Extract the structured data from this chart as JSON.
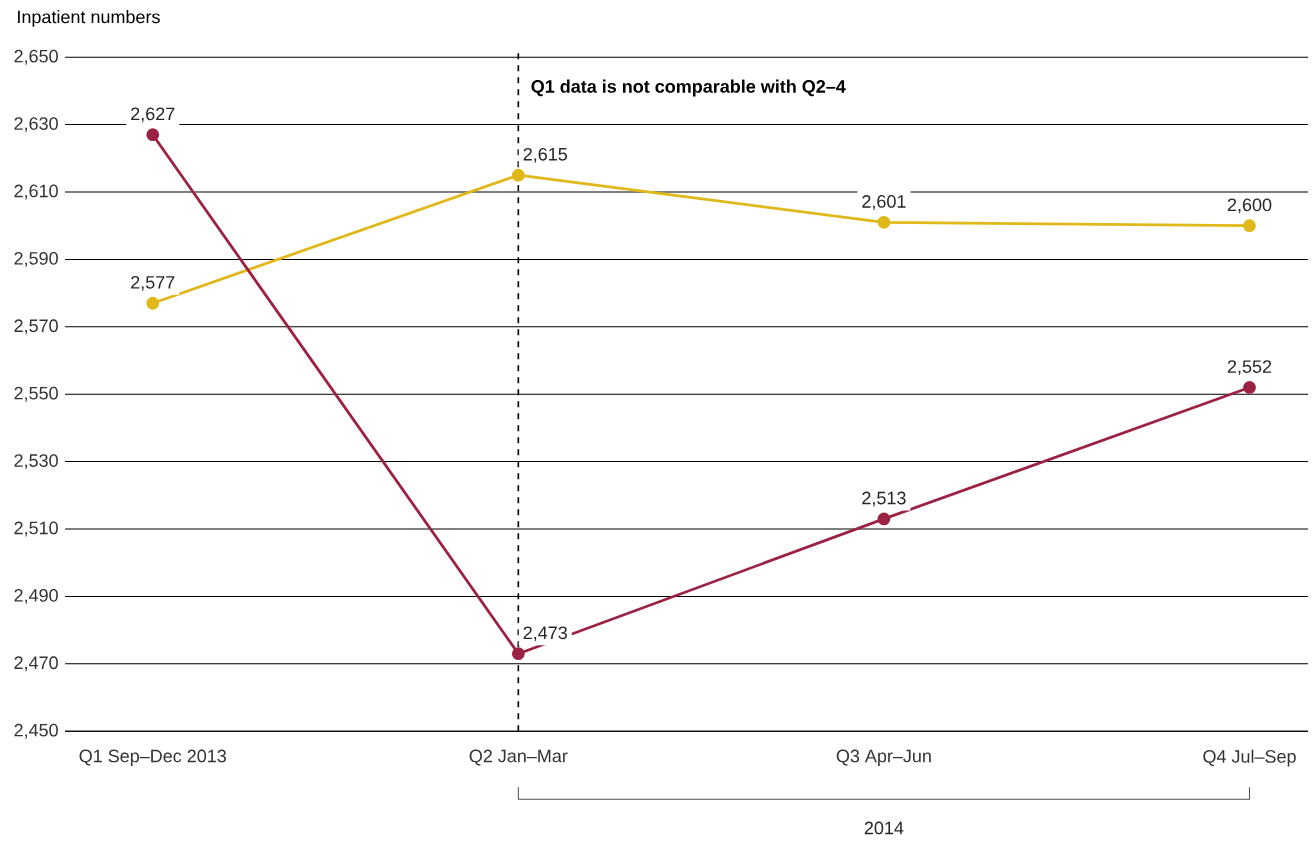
{
  "chart_data": {
    "type": "line",
    "ylabel": "Inpatient numbers",
    "categories": [
      "Q1 Sep–Dec 2013",
      "Q2 Jan–Mar",
      "Q3 Apr–Jun",
      "Q4 Jul–Sep"
    ],
    "series": [
      {
        "color": "#e0b81a",
        "values": [
          2577,
          2615,
          2601,
          2600
        ],
        "value_labels": [
          "2,577",
          "2,615",
          "2,601",
          "2,600"
        ]
      },
      {
        "color": "#9b2243",
        "values": [
          2627,
          2473,
          2513,
          2552
        ],
        "value_labels": [
          "2,627",
          "2,473",
          "2,513",
          "2,552"
        ]
      }
    ],
    "ylim": [
      2450,
      2650
    ],
    "yticks": [
      {
        "value": 2450,
        "label": "2,450"
      },
      {
        "value": 2470,
        "label": "2,470"
      },
      {
        "value": 2490,
        "label": "2,490"
      },
      {
        "value": 2510,
        "label": "2,510"
      },
      {
        "value": 2530,
        "label": "2,530"
      },
      {
        "value": 2550,
        "label": "2,550"
      },
      {
        "value": 2570,
        "label": "2,570"
      },
      {
        "value": 2590,
        "label": "2,590"
      },
      {
        "value": 2610,
        "label": "2,610"
      },
      {
        "value": 2630,
        "label": "2,630"
      },
      {
        "value": 2650,
        "label": "2,650"
      }
    ],
    "ref_lines": [
      {
        "axis": "x",
        "value": "Q2 Jan–Mar",
        "label": "Q1 data is not comparable with Q2–4",
        "line_style": "dashed",
        "color": "#000000"
      }
    ],
    "annotations": [
      "2014"
    ],
    "grid": "y",
    "marker": "circle",
    "line_style": "solid"
  }
}
